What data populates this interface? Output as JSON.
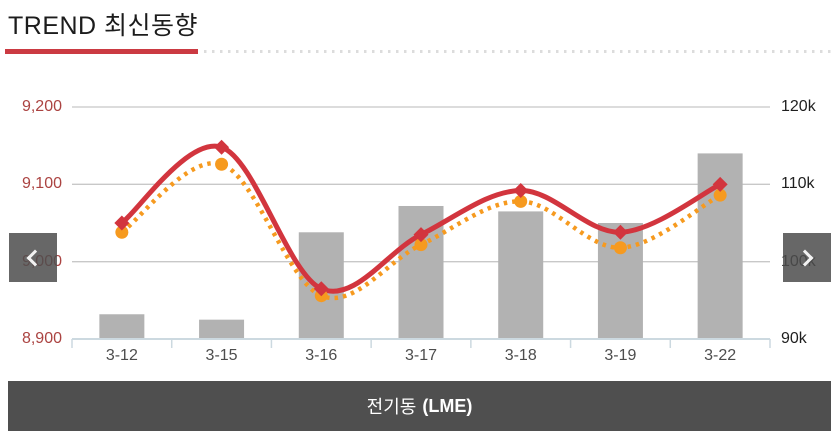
{
  "header": {
    "title": "TREND 최신동향"
  },
  "carousel": {
    "prev_label": "previous",
    "next_label": "next"
  },
  "footer": {
    "label_ko": "전기동",
    "label_en": "(LME)"
  },
  "colors": {
    "title_underline": "#cb3a42",
    "line_red": "#d2353e",
    "line_orange": "#f69a1f",
    "bar_gray": "#b2b2b2",
    "grid": "#c8c8c8",
    "axis": "#ccd9e0",
    "left_tick_text": "#ab4341",
    "right_tick_text": "#1f1f1f",
    "x_tick_text": "#4d4d4d",
    "footer_bg": "#4f4f4f"
  },
  "chart_data": {
    "type": "bar",
    "subtype": "bar+line combo, dual axis",
    "categories": [
      "3-12",
      "3-15",
      "3-16",
      "3-17",
      "3-18",
      "3-19",
      "3-22"
    ],
    "series": [
      {
        "name": "volume-bars",
        "type": "bar",
        "axis": "right",
        "values": [
          93.2,
          92.5,
          103.8,
          107.2,
          106.5,
          105.0,
          114.0
        ]
      },
      {
        "name": "price-solid-red",
        "type": "line",
        "style": "solid",
        "axis": "left",
        "values": [
          9050,
          9148,
          8965,
          9035,
          9092,
          9038,
          9100
        ]
      },
      {
        "name": "price-dotted-orange",
        "type": "line",
        "style": "dotted",
        "axis": "left",
        "values": [
          9038,
          9126,
          8956,
          9022,
          9078,
          9018,
          9086
        ]
      }
    ],
    "left_axis": {
      "ticks_top_to_bottom": [
        "9,200",
        "9,100",
        "9,000",
        "8,900"
      ],
      "min": 8900,
      "max": 9200
    },
    "right_axis": {
      "ticks_top_to_bottom": [
        "120k",
        "110k",
        "100k",
        "90k"
      ],
      "min": 90,
      "max": 120
    },
    "grid": true,
    "legend": false,
    "title": "TREND 최신동향",
    "xlabel": "",
    "ylabel": ""
  }
}
